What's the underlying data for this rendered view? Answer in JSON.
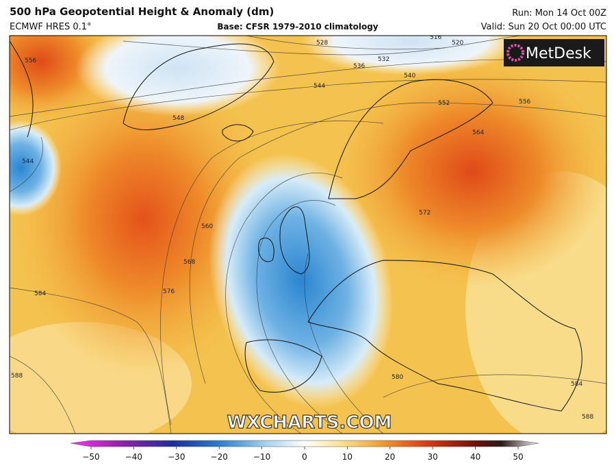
{
  "header": {
    "title": "500 hPa Geopotential Height & Anomaly (dm)",
    "model": "ECMWF HRES 0.1°",
    "base": "Base: CFSR 1979-2010 climatology",
    "run": "Run: Mon 14 Oct 00Z",
    "valid": "Valid: Sun 20 Oct 00:00 UTC"
  },
  "logo": "MetDesk",
  "watermark": "WXCHARTS.COM",
  "contour_labels": [
    "528",
    "532",
    "536",
    "540",
    "544",
    "548",
    "552",
    "556",
    "556",
    "564",
    "544",
    "560",
    "568",
    "576",
    "584",
    "572",
    "588",
    "580",
    "584",
    "588",
    "516",
    "520"
  ],
  "colorbar": {
    "ticks": [
      {
        "value": -50,
        "label": "−50"
      },
      {
        "value": -40,
        "label": "−40"
      },
      {
        "value": -30,
        "label": "−30"
      },
      {
        "value": -20,
        "label": "−20"
      },
      {
        "value": -10,
        "label": "−10"
      },
      0,
      10,
      20,
      30,
      40,
      50
    ]
  }
}
